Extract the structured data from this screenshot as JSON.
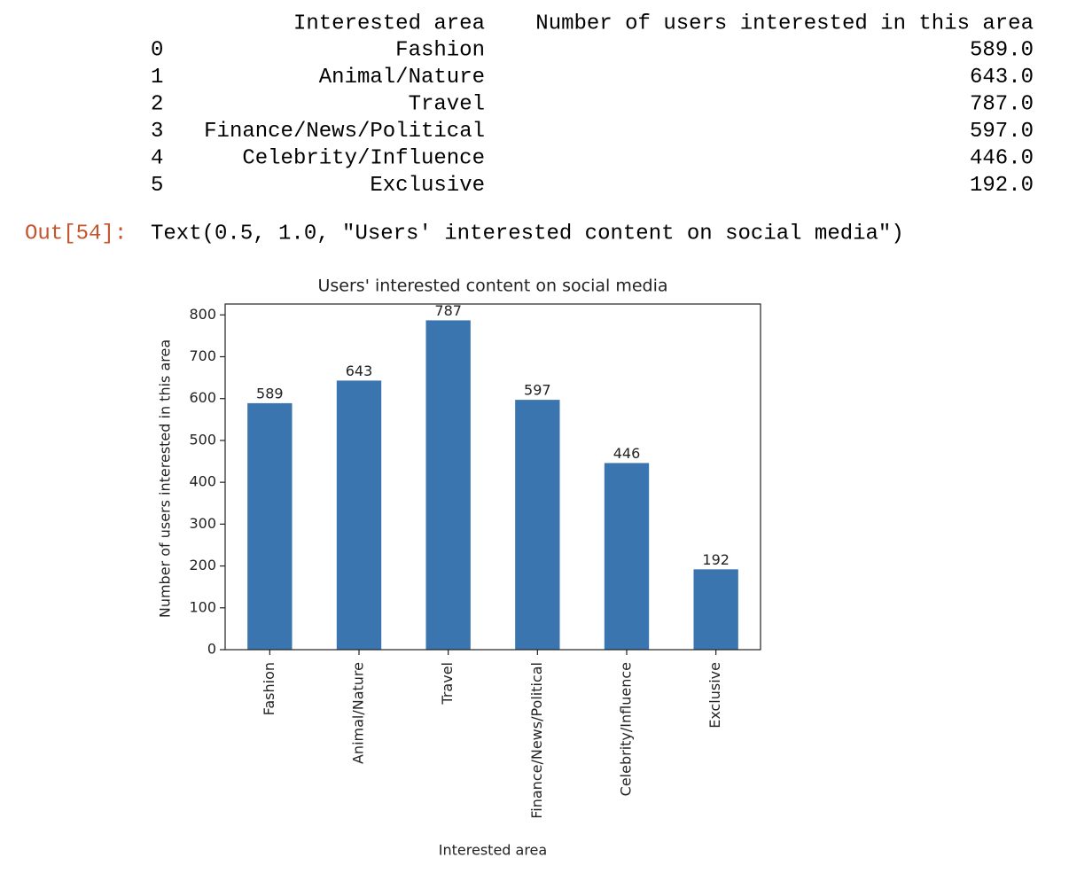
{
  "table": {
    "header": [
      "Interested area",
      "Number of users interested in this area"
    ],
    "rows": [
      [
        0,
        "Fashion",
        "589.0"
      ],
      [
        1,
        "Animal/Nature",
        "643.0"
      ],
      [
        2,
        "Travel",
        "787.0"
      ],
      [
        3,
        "Finance/News/Political",
        "597.0"
      ],
      [
        4,
        "Celebrity/Influence",
        "446.0"
      ],
      [
        5,
        "Exclusive",
        "192.0"
      ]
    ]
  },
  "output": {
    "prompt": "Out[54]:",
    "text": "Text(0.5, 1.0, \"Users' interested content on social media\")"
  },
  "chart_data": {
    "type": "bar",
    "title": "Users' interested content on social media",
    "x_label": "Interested area",
    "y_label": "Number of users interested in this area",
    "categories": [
      "Fashion",
      "Animal/Nature",
      "Travel",
      "Finance/News/Political",
      "Celebrity/Influence",
      "Exclusive"
    ],
    "values": [
      589,
      643,
      787,
      597,
      446,
      192
    ],
    "color": "#3a75af",
    "ylim": [
      0,
      826
    ],
    "yticks": [
      0,
      100,
      200,
      300,
      400,
      500,
      600,
      700,
      800
    ]
  }
}
